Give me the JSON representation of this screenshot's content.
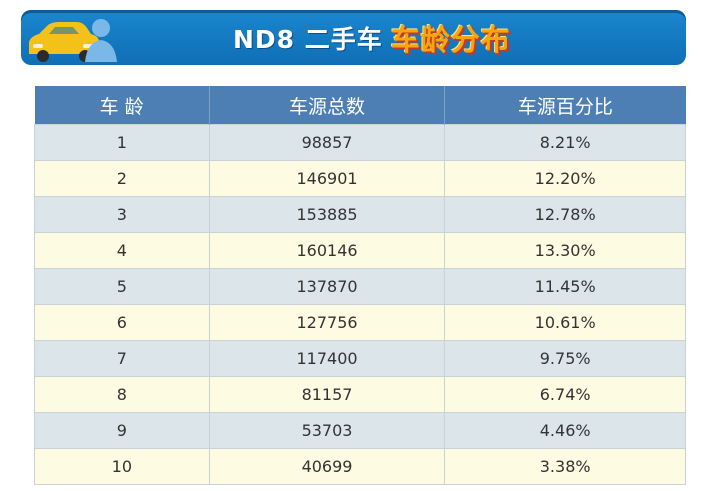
{
  "banner": {
    "title_white": "ND8 二手车",
    "title_accent": "车龄分布",
    "icon": "car-person-icon"
  },
  "table": {
    "headers": [
      "车 龄",
      "车源总数",
      "车源百分比"
    ],
    "rows": [
      [
        "1",
        "98857",
        "8.21%"
      ],
      [
        "2",
        "146901",
        "12.20%"
      ],
      [
        "3",
        "153885",
        "12.78%"
      ],
      [
        "4",
        "160146",
        "13.30%"
      ],
      [
        "5",
        "137870",
        "11.45%"
      ],
      [
        "6",
        "127756",
        "10.61%"
      ],
      [
        "7",
        "117400",
        "9.75%"
      ],
      [
        "8",
        "81157",
        "6.74%"
      ],
      [
        "9",
        "53703",
        "4.46%"
      ],
      [
        "10",
        "40699",
        "3.38%"
      ]
    ]
  },
  "colors": {
    "banner": "#1b86cf",
    "header": "#4d7fb5",
    "row_odd": "#dce6ea",
    "row_even": "#fefbe3",
    "accent": "#f3a60d"
  }
}
